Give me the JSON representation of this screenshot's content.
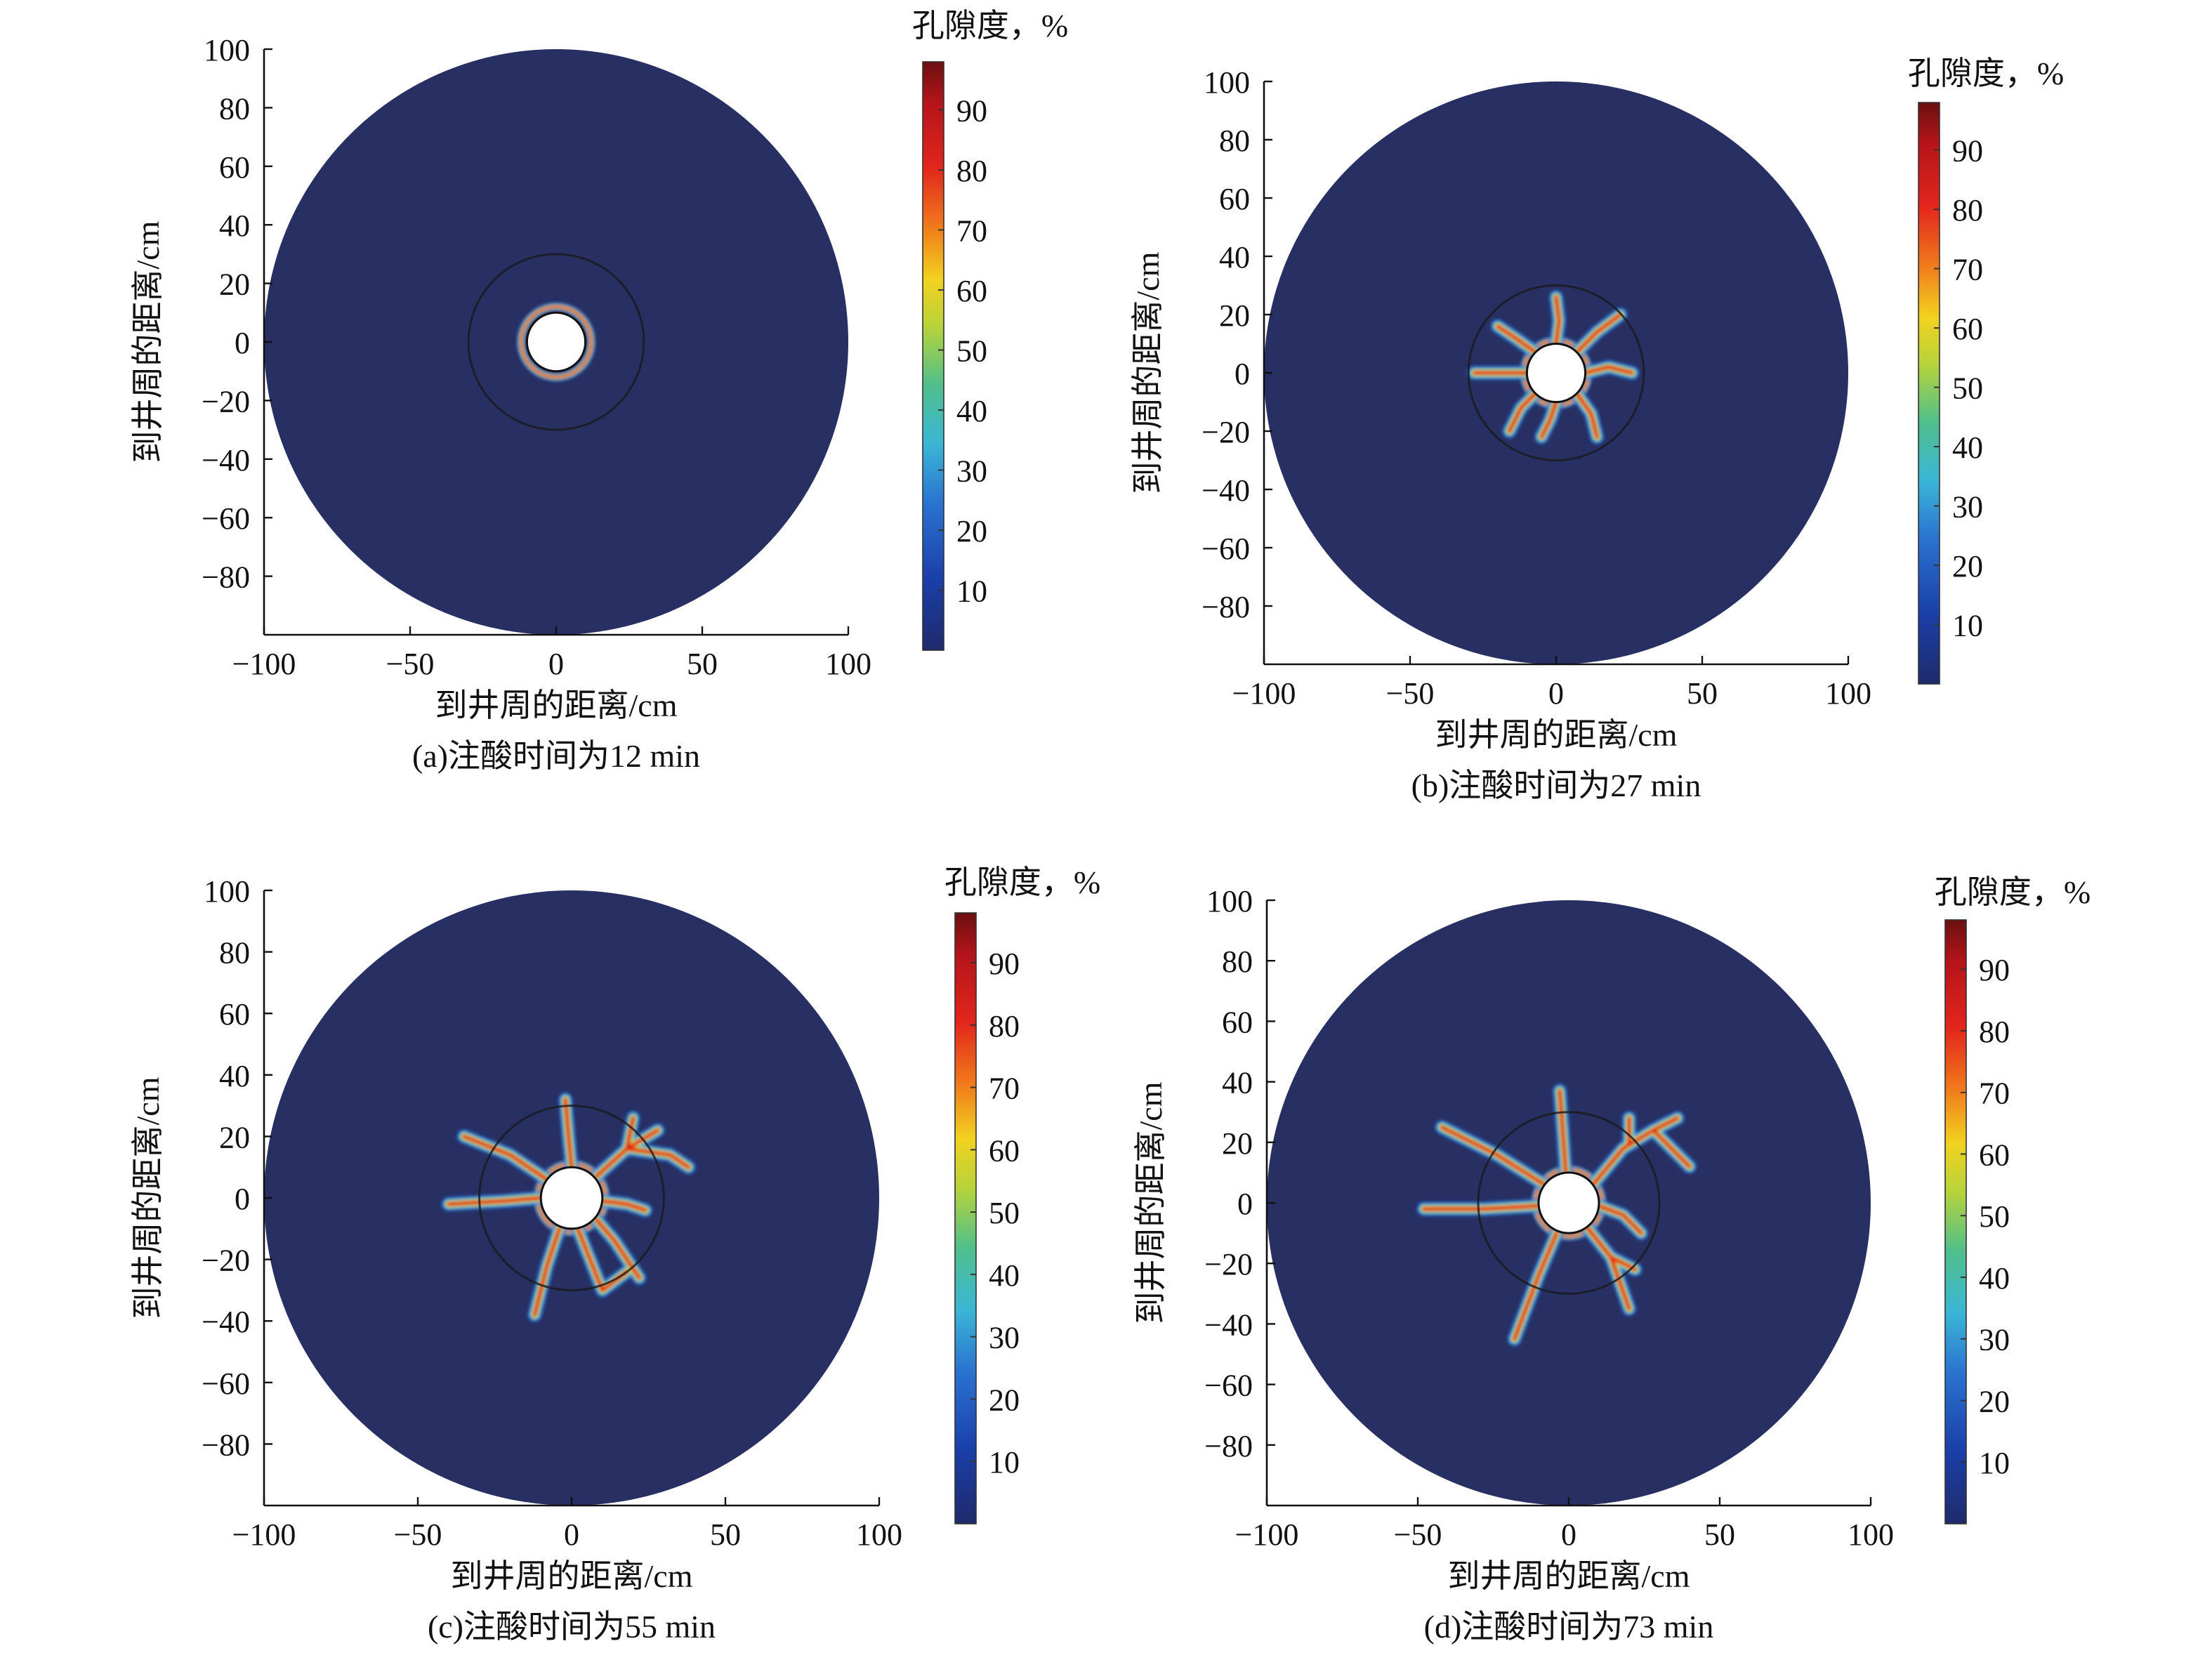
{
  "colors": {
    "background_field": "#272f63",
    "well": "#ffffff",
    "ring": "#1a1a1a"
  },
  "chart_data": [
    {
      "type": "heatmap",
      "panel": "a",
      "caption": "(a)注酸时间为12 min",
      "xlabel": "到井周的距离/cm",
      "ylabel": "到井周的距离/cm",
      "xlim": [
        -100,
        100
      ],
      "ylim": [
        -100,
        100
      ],
      "xticks": [
        "−100",
        "−50",
        "0",
        "50",
        "100"
      ],
      "yticks": [
        "100",
        "80",
        "60",
        "40",
        "20",
        "0",
        "−20",
        "−40",
        "−60",
        "−80"
      ],
      "colorbar": {
        "title": "孔隙度，%",
        "range": [
          0,
          98
        ],
        "ticks": [
          "90",
          "80",
          "70",
          "60",
          "50",
          "40",
          "30",
          "20",
          "10"
        ]
      },
      "domain_radius_cm": 100,
      "well_radius_cm": 10,
      "ring_radius_cm": 30,
      "halo_radius_cm": 12,
      "wormholes": []
    },
    {
      "type": "heatmap",
      "panel": "b",
      "caption": "(b)注酸时间为27 min",
      "xlabel": "到井周的距离/cm",
      "ylabel": "到井周的距离/cm",
      "xlim": [
        -100,
        100
      ],
      "ylim": [
        -100,
        100
      ],
      "xticks": [
        "−100",
        "−50",
        "0",
        "50",
        "100"
      ],
      "yticks": [
        "100",
        "80",
        "60",
        "40",
        "20",
        "0",
        "−20",
        "−40",
        "−60",
        "−80"
      ],
      "colorbar": {
        "title": "孔隙度，%",
        "range": [
          0,
          98
        ],
        "ticks": [
          "90",
          "80",
          "70",
          "60",
          "50",
          "40",
          "30",
          "20",
          "10"
        ]
      },
      "domain_radius_cm": 100,
      "well_radius_cm": 10,
      "ring_radius_cm": 30,
      "halo_radius_cm": 11,
      "wormholes": [
        [
          [
            0,
            10
          ],
          [
            1,
            18
          ],
          [
            0,
            26
          ]
        ],
        [
          [
            7,
            7
          ],
          [
            14,
            14
          ],
          [
            22,
            20
          ]
        ],
        [
          [
            10,
            0
          ],
          [
            18,
            2
          ],
          [
            26,
            0
          ]
        ],
        [
          [
            7,
            -7
          ],
          [
            12,
            -14
          ],
          [
            14,
            -22
          ]
        ],
        [
          [
            0,
            -10
          ],
          [
            -2,
            -16
          ],
          [
            -5,
            -22
          ]
        ],
        [
          [
            -7,
            -7
          ],
          [
            -12,
            -12
          ],
          [
            -16,
            -20
          ]
        ],
        [
          [
            -10,
            0
          ],
          [
            -18,
            0
          ],
          [
            -28,
            0
          ]
        ],
        [
          [
            -7,
            7
          ],
          [
            -14,
            12
          ],
          [
            -20,
            16
          ]
        ]
      ]
    },
    {
      "type": "heatmap",
      "panel": "c",
      "caption": "(c)注酸时间为55 min",
      "xlabel": "到井周的距离/cm",
      "ylabel": "到井周的距离/cm",
      "xlim": [
        -100,
        100
      ],
      "ylim": [
        -100,
        100
      ],
      "xticks": [
        "−100",
        "−50",
        "0",
        "50",
        "100"
      ],
      "yticks": [
        "100",
        "80",
        "60",
        "40",
        "20",
        "0",
        "−20",
        "−40",
        "−60",
        "−80"
      ],
      "colorbar": {
        "title": "孔隙度，%",
        "range": [
          0,
          98
        ],
        "ticks": [
          "90",
          "80",
          "70",
          "60",
          "50",
          "40",
          "30",
          "20",
          "10"
        ]
      },
      "domain_radius_cm": 100,
      "well_radius_cm": 10,
      "ring_radius_cm": 30,
      "halo_radius_cm": 11,
      "wormholes": [
        [
          [
            0,
            10
          ],
          [
            -1,
            20
          ],
          [
            -2,
            32
          ]
        ],
        [
          [
            8,
            7
          ],
          [
            18,
            16
          ],
          [
            28,
            22
          ]
        ],
        [
          [
            18,
            16
          ],
          [
            32,
            14
          ],
          [
            38,
            10
          ]
        ],
        [
          [
            18,
            16
          ],
          [
            20,
            26
          ]
        ],
        [
          [
            10,
            -1
          ],
          [
            18,
            -2
          ],
          [
            24,
            -4
          ]
        ],
        [
          [
            8,
            -7
          ],
          [
            14,
            -14
          ],
          [
            22,
            -26
          ]
        ],
        [
          [
            2,
            -10
          ],
          [
            6,
            -20
          ],
          [
            10,
            -30
          ],
          [
            18,
            -24
          ]
        ],
        [
          [
            -4,
            -10
          ],
          [
            -8,
            -22
          ],
          [
            -12,
            -38
          ]
        ],
        [
          [
            -10,
            0
          ],
          [
            -22,
            -1
          ],
          [
            -40,
            -2
          ]
        ],
        [
          [
            -8,
            6
          ],
          [
            -20,
            14
          ],
          [
            -35,
            20
          ]
        ]
      ]
    },
    {
      "type": "heatmap",
      "panel": "d",
      "caption": "(d)注酸时间为73 min",
      "xlabel": "到井周的距离/cm",
      "ylabel": "到井周的距离/cm",
      "xlim": [
        -100,
        100
      ],
      "ylim": [
        -100,
        100
      ],
      "xticks": [
        "−100",
        "−50",
        "0",
        "50",
        "100"
      ],
      "yticks": [
        "100",
        "80",
        "60",
        "40",
        "20",
        "0",
        "−20",
        "−40",
        "−60",
        "−80"
      ],
      "colorbar": {
        "title": "孔隙度，%",
        "range": [
          0,
          98
        ],
        "ticks": [
          "90",
          "80",
          "70",
          "60",
          "50",
          "40",
          "30",
          "20",
          "10"
        ]
      },
      "domain_radius_cm": 100,
      "well_radius_cm": 10,
      "ring_radius_cm": 30,
      "halo_radius_cm": 11,
      "wormholes": [
        [
          [
            -1,
            10
          ],
          [
            -2,
            24
          ],
          [
            -3,
            37
          ]
        ],
        [
          [
            8,
            6
          ],
          [
            18,
            18
          ],
          [
            28,
            24
          ],
          [
            40,
            12
          ]
        ],
        [
          [
            28,
            24
          ],
          [
            36,
            28
          ]
        ],
        [
          [
            20,
            20
          ],
          [
            20,
            28
          ]
        ],
        [
          [
            10,
            -1
          ],
          [
            18,
            -4
          ],
          [
            24,
            -10
          ]
        ],
        [
          [
            6,
            -8
          ],
          [
            14,
            -18
          ],
          [
            20,
            -35
          ]
        ],
        [
          [
            14,
            -18
          ],
          [
            22,
            -22
          ]
        ],
        [
          [
            -4,
            -10
          ],
          [
            -10,
            -24
          ],
          [
            -18,
            -45
          ]
        ],
        [
          [
            -10,
            -1
          ],
          [
            -28,
            -2
          ],
          [
            -48,
            -2
          ]
        ],
        [
          [
            -8,
            6
          ],
          [
            -24,
            16
          ],
          [
            -42,
            25
          ]
        ]
      ]
    }
  ]
}
